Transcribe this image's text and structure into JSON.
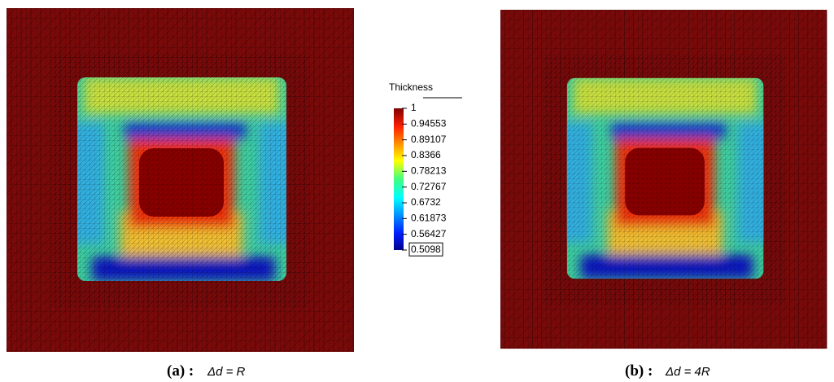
{
  "colorbar": {
    "title": "Thickness",
    "ticks": [
      1,
      0.94553,
      0.89107,
      0.8366,
      0.78213,
      0.72767,
      0.6732,
      0.61873,
      0.56427,
      0.5098
    ]
  },
  "panels": [
    {
      "label": "(a) :",
      "formula": "Δd = R"
    },
    {
      "label": "(b) :",
      "formula": "Δd = 4R"
    }
  ]
}
